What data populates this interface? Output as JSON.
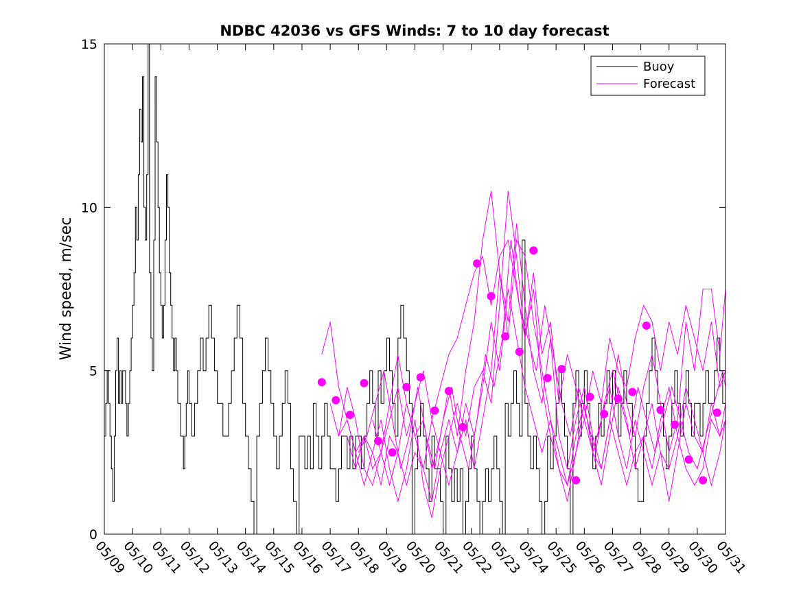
{
  "chart_data": {
    "type": "line",
    "title": "NDBC 42036 vs GFS Winds: 7 to 10 day forecast",
    "xlabel": "",
    "ylabel": "Wind speed, m/sec",
    "ylim": [
      0,
      15
    ],
    "yticks": [
      0,
      5,
      10,
      15
    ],
    "xlim": [
      0,
      22
    ],
    "x_tick_labels": [
      "05/09",
      "05/10",
      "05/11",
      "05/12",
      "05/13",
      "05/14",
      "05/15",
      "05/16",
      "05/17",
      "05/18",
      "05/19",
      "05/20",
      "05/21",
      "05/22",
      "05/23",
      "05/24",
      "05/25",
      "05/26",
      "05/27",
      "05/28",
      "05/29",
      "05/30",
      "05/31"
    ],
    "grid": false,
    "legend": {
      "position": "top-right",
      "entries": [
        "Buoy",
        "Forecast"
      ]
    },
    "colors": {
      "buoy": "#000000",
      "forecast": "#ff00ff"
    },
    "series": [
      {
        "name": "Buoy",
        "style": "stairs",
        "x": [
          0.0,
          0.05,
          0.1,
          0.15,
          0.2,
          0.25,
          0.3,
          0.35,
          0.4,
          0.45,
          0.5,
          0.55,
          0.6,
          0.65,
          0.7,
          0.75,
          0.8,
          0.85,
          0.9,
          0.95,
          1.0,
          1.05,
          1.1,
          1.15,
          1.2,
          1.25,
          1.3,
          1.35,
          1.4,
          1.45,
          1.5,
          1.55,
          1.6,
          1.65,
          1.7,
          1.75,
          1.8,
          1.85,
          1.9,
          1.95,
          2.0,
          2.05,
          2.1,
          2.15,
          2.2,
          2.25,
          2.3,
          2.35,
          2.4,
          2.45,
          2.5,
          2.55,
          2.6,
          2.65,
          2.7,
          2.75,
          2.8,
          2.85,
          2.9,
          2.95,
          3.0,
          3.1,
          3.2,
          3.3,
          3.4,
          3.5,
          3.6,
          3.7,
          3.8,
          3.9,
          4.0,
          4.1,
          4.2,
          4.3,
          4.4,
          4.5,
          4.6,
          4.7,
          4.8,
          4.9,
          5.0,
          5.1,
          5.2,
          5.3,
          5.4,
          5.5,
          5.6,
          5.7,
          5.8,
          5.9,
          6.0,
          6.1,
          6.2,
          6.3,
          6.4,
          6.5,
          6.6,
          6.7,
          6.8,
          6.9,
          7.0,
          7.1,
          7.2,
          7.3,
          7.4,
          7.5,
          7.6,
          7.7,
          7.8,
          7.9,
          8.0,
          8.1,
          8.2,
          8.3,
          8.4,
          8.5,
          8.6,
          8.7,
          8.8,
          8.9,
          9.0,
          9.1,
          9.2,
          9.3,
          9.4,
          9.5,
          9.6,
          9.7,
          9.8,
          9.9,
          10.0,
          10.1,
          10.2,
          10.3,
          10.4,
          10.5,
          10.6,
          10.7,
          10.8,
          10.9,
          11.0,
          11.1,
          11.2,
          11.3,
          11.4,
          11.5,
          11.6,
          11.7,
          11.8,
          11.9,
          12.0,
          12.1,
          12.2,
          12.3,
          12.4,
          12.5,
          12.6,
          12.7,
          12.8,
          12.9,
          13.0,
          13.1,
          13.2,
          13.3,
          13.4,
          13.5,
          13.6,
          13.7,
          13.8,
          13.9,
          14.0,
          14.1,
          14.2,
          14.3,
          14.4,
          14.5,
          14.6,
          14.7,
          14.8,
          14.9,
          15.0,
          15.1,
          15.2,
          15.3,
          15.4,
          15.5,
          15.6,
          15.7,
          15.8,
          15.9,
          16.0,
          16.1,
          16.2,
          16.3,
          16.4,
          16.5,
          16.6,
          16.7,
          16.8,
          16.9,
          17.0,
          17.1,
          17.2,
          17.3,
          17.4,
          17.5,
          17.6,
          17.7,
          17.8,
          17.9,
          18.0,
          18.1,
          18.2,
          18.3,
          18.4,
          18.5,
          18.6,
          18.7,
          18.8,
          18.9,
          19.0,
          19.1,
          19.2,
          19.3,
          19.4,
          19.5,
          19.6,
          19.7,
          19.8,
          19.9,
          20.0,
          20.1,
          20.2,
          20.3,
          20.4,
          20.5,
          20.6,
          20.7,
          20.8,
          20.9,
          21.0,
          21.1,
          21.2,
          21.3,
          21.4,
          21.5,
          21.6,
          21.7,
          21.8,
          21.9,
          22.0
        ],
        "y": [
          3,
          4,
          5,
          4,
          3,
          2,
          1,
          3,
          5,
          6,
          4,
          5,
          4,
          5,
          5,
          4,
          3,
          4,
          5,
          6,
          7,
          8,
          10,
          9,
          11,
          13,
          12,
          14,
          10,
          9,
          11,
          15,
          8,
          6,
          5,
          9,
          14,
          12,
          10,
          8,
          7,
          6,
          7,
          9,
          11,
          10,
          8,
          7,
          6,
          5,
          6,
          5,
          4,
          4,
          3,
          3,
          2,
          3,
          4,
          5,
          4,
          3,
          4,
          5,
          6,
          5,
          6,
          7,
          6,
          5,
          4,
          4,
          3,
          3,
          4,
          5,
          6,
          7,
          6,
          4,
          3,
          2,
          1,
          0,
          3,
          4,
          5,
          6,
          5,
          4,
          3,
          2,
          3,
          4,
          5,
          4,
          2,
          1,
          0,
          3,
          3,
          2,
          3,
          2,
          4,
          3,
          2,
          3,
          4,
          3,
          2,
          2,
          1,
          2,
          3,
          3,
          2,
          3,
          2,
          3,
          3,
          2,
          3,
          4,
          5,
          4,
          3,
          5,
          4,
          5,
          6,
          5,
          4,
          3,
          6,
          7,
          6,
          5,
          4,
          0,
          2,
          3,
          4,
          3,
          2,
          1,
          3,
          2,
          2,
          1,
          0,
          3,
          2,
          1,
          2,
          1,
          2,
          0,
          1,
          2,
          3,
          2,
          1,
          0,
          1,
          2,
          1,
          2,
          3,
          2,
          1,
          0,
          4,
          3,
          4,
          5,
          4,
          3,
          9,
          4,
          3,
          2,
          3,
          2,
          1,
          0,
          1,
          3,
          2,
          3,
          4,
          5,
          4,
          3,
          2,
          0,
          4,
          5,
          3,
          4,
          5,
          4,
          3,
          2,
          3,
          4,
          3,
          4,
          5,
          4,
          5,
          4,
          3,
          4,
          5,
          4,
          4,
          3,
          2,
          1,
          1,
          3,
          4,
          5,
          6,
          5,
          4,
          4,
          3,
          2,
          3,
          4,
          5,
          4,
          3,
          4,
          5,
          4,
          3,
          4,
          4,
          3,
          4,
          5,
          4,
          4,
          5,
          6,
          5,
          4,
          5
        ]
      },
      {
        "name": "Forecast",
        "style": "line",
        "x": [
          7.7,
          8.0,
          8.3,
          8.6,
          8.9,
          9.2,
          9.5,
          9.8,
          10.1,
          10.4,
          10.7,
          11.0,
          11.3,
          11.6,
          11.9,
          12.2,
          12.5,
          12.8,
          13.1,
          13.4,
          13.7,
          14.0,
          14.3,
          14.6,
          14.9,
          15.2,
          15.5,
          15.8,
          16.1,
          16.4,
          16.7,
          17.0,
          17.3,
          17.6,
          17.9,
          18.2,
          18.5,
          18.8,
          19.1,
          19.4,
          19.7,
          20.0,
          20.3,
          20.6,
          20.9,
          21.2,
          21.5,
          21.8,
          22.0
        ],
        "y": [
          5.5,
          6.5,
          4.5,
          3.5,
          2.5,
          3.0,
          2.0,
          2.5,
          3.5,
          4.5,
          3.0,
          4.0,
          5.0,
          3.5,
          4.5,
          5.5,
          6.0,
          7.0,
          8.0,
          8.5,
          7.0,
          8.5,
          9.0,
          7.5,
          6.0,
          8.0,
          5.5,
          6.5,
          4.0,
          5.5,
          4.5,
          3.5,
          5.0,
          4.0,
          6.0,
          5.0,
          4.5,
          6.0,
          7.0,
          6.5,
          5.0,
          6.5,
          5.5,
          7.0,
          6.0,
          5.0,
          6.5,
          4.5,
          5.0
        ]
      },
      {
        "name": "Forecast",
        "style": "line",
        "x": [
          8.0,
          8.3,
          8.6,
          8.9,
          9.2,
          9.5,
          9.8,
          10.1,
          10.4,
          10.7,
          11.0,
          11.3,
          11.6,
          11.9,
          12.2,
          12.5,
          12.8,
          13.1,
          13.4,
          13.7,
          14.0,
          14.3,
          14.6,
          14.9,
          15.2,
          15.5,
          15.8,
          16.1,
          16.4,
          16.7,
          17.0,
          17.3,
          17.6,
          17.9,
          18.2,
          18.5,
          18.8,
          19.1,
          19.4,
          19.7,
          20.0,
          20.3,
          20.6,
          20.9,
          21.2,
          21.5,
          21.8,
          22.0
        ],
        "y": [
          4.0,
          3.0,
          4.5,
          3.5,
          2.0,
          1.5,
          2.5,
          4.0,
          5.5,
          4.0,
          3.0,
          3.5,
          2.0,
          3.0,
          4.5,
          3.0,
          5.0,
          6.5,
          9.0,
          10.5,
          8.0,
          6.5,
          9.5,
          7.0,
          5.0,
          4.0,
          6.0,
          3.0,
          2.0,
          3.5,
          4.5,
          3.0,
          2.0,
          3.5,
          5.5,
          4.0,
          3.0,
          4.5,
          5.5,
          4.0,
          2.5,
          3.5,
          6.5,
          5.0,
          7.5,
          7.5,
          5.5,
          7.5
        ]
      },
      {
        "name": "Forecast",
        "style": "line",
        "x": [
          8.3,
          8.6,
          8.9,
          9.2,
          9.5,
          9.8,
          10.1,
          10.4,
          10.7,
          11.0,
          11.3,
          11.6,
          11.9,
          12.2,
          12.5,
          12.8,
          13.1,
          13.4,
          13.7,
          14.0,
          14.3,
          14.6,
          14.9,
          15.2,
          15.5,
          15.8,
          16.1,
          16.4,
          16.7,
          17.0,
          17.3,
          17.6,
          17.9,
          18.2,
          18.5,
          18.8,
          19.1,
          19.4,
          19.7,
          20.0,
          20.3,
          20.6,
          20.9,
          21.2,
          21.5,
          21.8,
          22.0
        ],
        "y": [
          3.0,
          3.5,
          2.5,
          1.5,
          2.5,
          3.5,
          2.0,
          1.0,
          2.0,
          3.5,
          1.5,
          0.5,
          2.0,
          3.0,
          4.0,
          3.0,
          4.5,
          5.0,
          4.0,
          7.0,
          10.5,
          8.5,
          6.0,
          7.5,
          4.5,
          3.0,
          2.0,
          1.0,
          2.5,
          4.0,
          2.5,
          1.5,
          3.0,
          4.5,
          3.5,
          2.0,
          3.0,
          4.0,
          2.5,
          1.0,
          2.5,
          4.0,
          3.0,
          2.5,
          1.5,
          2.5,
          3.5
        ]
      },
      {
        "name": "Forecast",
        "style": "line",
        "x": [
          8.6,
          8.9,
          9.2,
          9.5,
          9.8,
          10.1,
          10.4,
          10.7,
          11.0,
          11.3,
          11.6,
          11.9,
          12.2,
          12.5,
          12.8,
          13.1,
          13.4,
          13.7,
          14.0,
          14.3,
          14.6,
          14.9,
          15.2,
          15.5,
          15.8,
          16.1,
          16.4,
          16.7,
          17.0,
          17.3,
          17.6,
          17.9,
          18.2,
          18.5,
          18.8,
          19.1,
          19.4,
          19.7,
          20.0,
          20.3,
          20.6,
          20.9,
          21.2,
          21.5,
          21.8,
          22.0
        ],
        "y": [
          3.0,
          2.0,
          3.0,
          2.5,
          1.5,
          3.0,
          2.5,
          1.5,
          2.5,
          2.0,
          3.5,
          2.5,
          1.5,
          2.5,
          3.5,
          2.0,
          3.5,
          5.0,
          8.0,
          6.0,
          9.0,
          8.5,
          6.5,
          5.0,
          3.5,
          2.5,
          1.5,
          2.5,
          3.5,
          2.5,
          2.0,
          3.5,
          2.5,
          1.5,
          2.5,
          3.0,
          2.0,
          3.5,
          4.5,
          3.0,
          2.0,
          1.5,
          2.0,
          3.5,
          3.0,
          4.0
        ]
      },
      {
        "name": "Forecast",
        "style": "line",
        "x": [
          9.0,
          9.3,
          9.6,
          9.9,
          10.2,
          10.5,
          10.8,
          11.1,
          11.4,
          11.7,
          12.0,
          12.3,
          12.6,
          12.9,
          13.2,
          13.5,
          13.8,
          14.1,
          14.4,
          14.7,
          15.0,
          15.3,
          15.6,
          15.9,
          16.2,
          16.5,
          16.8,
          17.1,
          17.4,
          17.7,
          18.0,
          18.3,
          18.6,
          18.9,
          19.2,
          19.5,
          19.8,
          20.1,
          20.4,
          20.7,
          21.0,
          21.3,
          21.6,
          21.9,
          22.0
        ],
        "y": [
          2.5,
          3.0,
          4.0,
          5.0,
          3.5,
          2.0,
          3.0,
          4.5,
          3.0,
          2.0,
          3.5,
          4.5,
          3.0,
          2.0,
          3.5,
          5.5,
          4.5,
          6.0,
          9.0,
          7.0,
          6.0,
          5.0,
          7.0,
          5.5,
          4.0,
          3.0,
          4.5,
          3.5,
          2.5,
          4.0,
          5.0,
          4.0,
          3.0,
          4.5,
          3.5,
          2.5,
          3.5,
          4.5,
          3.5,
          2.5,
          2.0,
          3.0,
          4.0,
          5.0,
          4.5
        ]
      },
      {
        "name": "Forecast",
        "style": "line",
        "x": [
          9.5,
          9.8,
          10.1,
          10.4,
          10.7,
          11.0,
          11.3,
          11.6,
          11.9,
          12.2,
          12.5,
          12.8,
          13.1,
          13.4,
          13.7,
          14.0,
          14.3,
          14.6,
          14.9,
          15.2,
          15.5,
          15.8,
          16.1,
          16.4,
          16.7,
          17.0,
          17.3,
          17.6,
          17.9,
          18.2,
          18.5,
          18.8,
          19.1,
          19.4,
          19.7,
          20.0,
          20.3,
          20.6,
          20.9,
          21.2,
          21.5,
          21.8,
          22.0
        ],
        "y": [
          3.5,
          2.5,
          1.5,
          2.5,
          4.0,
          3.0,
          2.0,
          1.0,
          2.5,
          3.5,
          2.5,
          4.0,
          3.0,
          4.5,
          6.5,
          5.0,
          7.5,
          6.0,
          4.5,
          3.5,
          2.5,
          3.5,
          2.0,
          1.5,
          3.0,
          4.0,
          2.5,
          3.5,
          4.5,
          3.0,
          2.0,
          3.5,
          2.5,
          1.5,
          2.5,
          2.0,
          3.0,
          4.5,
          3.5,
          2.5,
          4.0,
          3.0,
          3.5
        ]
      }
    ],
    "forecast_markers": {
      "name": "Forecast",
      "x": [
        7.7,
        8.2,
        8.7,
        9.2,
        9.7,
        10.2,
        10.7,
        11.2,
        11.7,
        12.2,
        12.7,
        13.2,
        13.7,
        14.2,
        14.7,
        15.2,
        15.7,
        16.2,
        16.7,
        17.2,
        17.7,
        18.2,
        18.7,
        19.2,
        19.7,
        20.2,
        20.7,
        21.2,
        21.7
      ],
      "y": [
        4.65,
        4.1,
        3.65,
        4.62,
        2.85,
        2.5,
        4.5,
        4.8,
        3.78,
        4.38,
        3.28,
        8.28,
        7.28,
        6.05,
        5.58,
        8.68,
        4.78,
        5.05,
        1.65,
        4.2,
        3.68,
        4.15,
        4.35,
        6.38,
        3.8,
        3.35,
        2.28,
        1.65,
        3.72
      ]
    }
  }
}
